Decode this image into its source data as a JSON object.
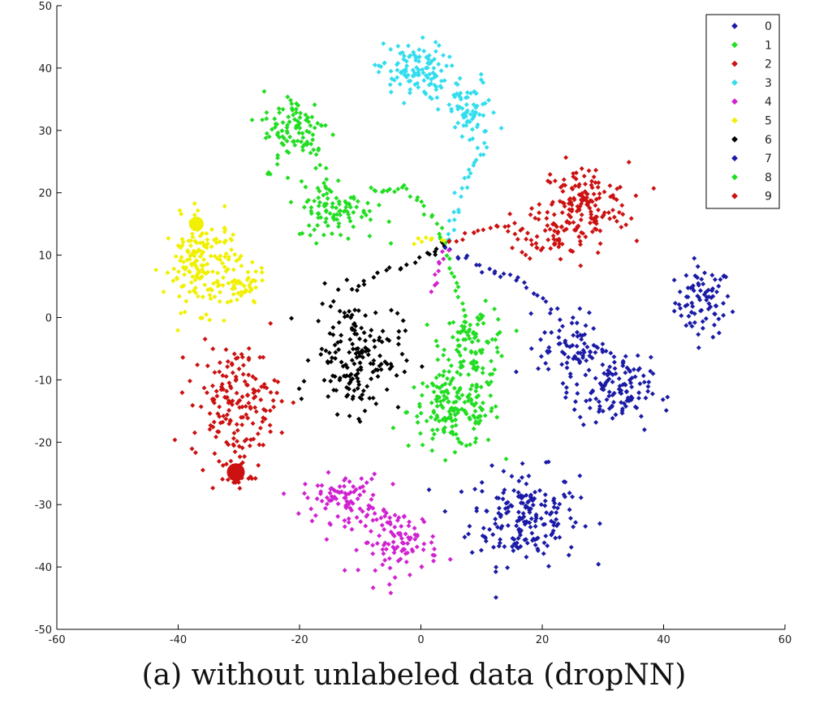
{
  "chart_data": {
    "type": "scatter",
    "caption": "(a) without unlabeled data (dropNN)",
    "xlim": [
      -60,
      60
    ],
    "ylim": [
      -50,
      50
    ],
    "xticks": [
      -60,
      -40,
      -20,
      0,
      20,
      40,
      60
    ],
    "yticks": [
      -50,
      -40,
      -30,
      -20,
      -10,
      0,
      10,
      20,
      30,
      40,
      50
    ],
    "legend_position": "top-right",
    "series": [
      {
        "name": "0",
        "color": "#1a1aa6",
        "clusters": [
          {
            "cx": 46.5,
            "cy": 2.5,
            "sx": 2.3,
            "sy": 2.8,
            "n": 80
          },
          {
            "cx": 17.0,
            "cy": -32.0,
            "sx": 4.5,
            "sy": 3.8,
            "n": 190
          }
        ]
      },
      {
        "name": "1",
        "color": "#22dd22",
        "clusters": [
          {
            "cx": 5.5,
            "cy": -15.0,
            "sx": 3.8,
            "sy": 3.0,
            "n": 170
          },
          {
            "cx": 9.0,
            "cy": -4.0,
            "sx": 2.8,
            "sy": 2.8,
            "n": 90
          }
        ]
      },
      {
        "name": "2",
        "color": "#cc1111",
        "clusters": [
          {
            "cx": 27.0,
            "cy": 18.0,
            "sx": 3.6,
            "sy": 3.4,
            "n": 140
          },
          {
            "cx": 22.0,
            "cy": 14.0,
            "sx": 2.8,
            "sy": 2.4,
            "n": 60
          }
        ]
      },
      {
        "name": "3",
        "color": "#33ddee",
        "clusters": [
          {
            "cx": -1.5,
            "cy": 39.5,
            "sx": 2.8,
            "sy": 2.3,
            "n": 110
          },
          {
            "cx": 8.0,
            "cy": 33.0,
            "sx": 2.3,
            "sy": 2.8,
            "n": 70
          }
        ]
      },
      {
        "name": "4",
        "color": "#d022d0",
        "clusters": [
          {
            "cx": -13.0,
            "cy": -29.0,
            "sx": 3.2,
            "sy": 1.9,
            "n": 90
          },
          {
            "cx": -3.5,
            "cy": -36.0,
            "sx": 3.2,
            "sy": 2.6,
            "n": 100
          }
        ]
      },
      {
        "name": "5",
        "color": "#f0f000",
        "clusters": [
          {
            "cx": -36.0,
            "cy": 8.5,
            "sx": 3.2,
            "sy": 3.6,
            "n": 170
          },
          {
            "cx": -29.5,
            "cy": 4.5,
            "sx": 2.0,
            "sy": 1.5,
            "n": 40
          }
        ]
      },
      {
        "name": "6",
        "color": "#000000",
        "clusters": [
          {
            "cx": -10.5,
            "cy": -6.0,
            "sx": 3.6,
            "sy": 4.6,
            "n": 170
          }
        ]
      },
      {
        "name": "7",
        "color": "#1a1aa6",
        "clusters": [
          {
            "cx": 31.5,
            "cy": -12.0,
            "sx": 3.2,
            "sy": 2.8,
            "n": 120
          },
          {
            "cx": 25.0,
            "cy": -4.5,
            "sx": 2.8,
            "sy": 2.8,
            "n": 80
          }
        ]
      },
      {
        "name": "8",
        "color": "#22dd22",
        "clusters": [
          {
            "cx": -20.5,
            "cy": 30.0,
            "sx": 2.8,
            "sy": 3.2,
            "n": 100
          },
          {
            "cx": -14.0,
            "cy": 17.5,
            "sx": 3.2,
            "sy": 2.6,
            "n": 100
          }
        ]
      },
      {
        "name": "9",
        "color": "#cc1111",
        "clusters": [
          {
            "cx": -30.5,
            "cy": -13.5,
            "sx": 3.6,
            "sy": 4.6,
            "n": 170
          },
          {
            "cx": -30.5,
            "cy": -25.0,
            "sx": 1.3,
            "sy": 1.3,
            "n": 30
          }
        ]
      }
    ],
    "bridges": [
      {
        "color": "#000000",
        "pts": [
          [
            -13,
            4
          ],
          [
            -6,
            7
          ],
          [
            1,
            10
          ],
          [
            4,
            12
          ]
        ],
        "n": 22
      },
      {
        "color": "#33ddee",
        "pts": [
          [
            4,
            12
          ],
          [
            6,
            18
          ],
          [
            8,
            24
          ],
          [
            11,
            28
          ]
        ],
        "n": 25
      },
      {
        "color": "#22dd22",
        "pts": [
          [
            -8,
            20
          ],
          [
            -3,
            21
          ],
          [
            1,
            17
          ],
          [
            4,
            12
          ]
        ],
        "n": 25
      },
      {
        "color": "#22dd22",
        "pts": [
          [
            4,
            10
          ],
          [
            6,
            5
          ],
          [
            7,
            0
          ],
          [
            8,
            -3
          ]
        ],
        "n": 18
      },
      {
        "color": "#cc1111",
        "pts": [
          [
            4,
            12
          ],
          [
            10,
            14
          ],
          [
            15,
            15
          ],
          [
            19,
            11
          ]
        ],
        "n": 22
      },
      {
        "color": "#1a1aa6",
        "pts": [
          [
            4,
            11
          ],
          [
            10,
            8
          ],
          [
            16,
            6
          ],
          [
            22,
            1
          ]
        ],
        "n": 25
      },
      {
        "color": "#d022d0",
        "pts": [
          [
            4,
            11
          ],
          [
            3,
            8
          ],
          [
            2,
            4
          ]
        ],
        "n": 10
      },
      {
        "color": "#f0f000",
        "pts": [
          [
            -1,
            12
          ],
          [
            1,
            13
          ],
          [
            4,
            12
          ]
        ],
        "n": 8
      }
    ],
    "blobs": [
      {
        "x": -37.0,
        "y": 15.0,
        "r": 9,
        "color": "#f0f000"
      },
      {
        "x": -30.5,
        "y": -24.8,
        "r": 11,
        "color": "#cc1111"
      }
    ]
  }
}
